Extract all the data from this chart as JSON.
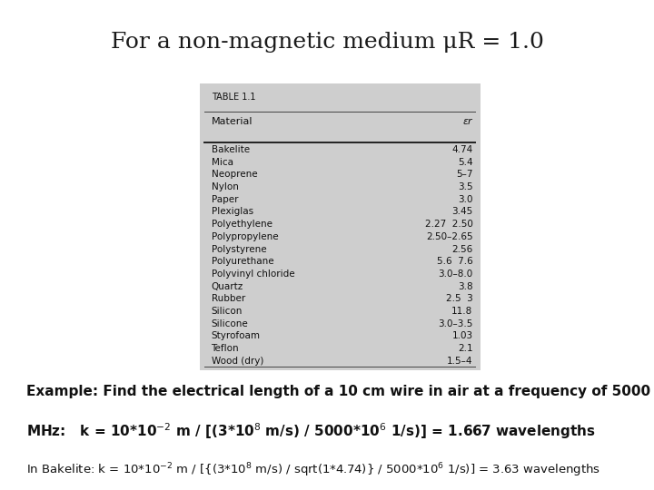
{
  "title": "For a non-magnetic medium μR = 1.0",
  "table_title": "TABLE 1.1",
  "col1_header": "Material",
  "col2_header": "εr",
  "table_data": [
    [
      "Bakelite",
      "4.74"
    ],
    [
      "Mica",
      "5.4"
    ],
    [
      "Neoprene",
      "5–7"
    ],
    [
      "Nylon",
      "3.5"
    ],
    [
      "Paper",
      "3.0"
    ],
    [
      "Plexiglas",
      "3.45"
    ],
    [
      "Polyethylene",
      "2.27  2.50"
    ],
    [
      "Polypropylene",
      "2.50–2.65"
    ],
    [
      "Polystyrene",
      "2.56"
    ],
    [
      "Polyurethane",
      "5.6  7.6"
    ],
    [
      "Polyvinyl chloride",
      "3.0–8.0"
    ],
    [
      "Quartz",
      "3.8"
    ],
    [
      "Rubber",
      "2.5  3"
    ],
    [
      "Silicon",
      "11.8"
    ],
    [
      "Silicone",
      "3.0–3.5"
    ],
    [
      "Styrofoam",
      "1.03"
    ],
    [
      "Teflon",
      "2.1"
    ],
    [
      "Wood (dry)",
      "1.5–4"
    ]
  ],
  "example_line1": "Example: Find the electrical length of a 10 cm wire in air at a frequency of 5000",
  "example_line2": "MHz:   k = 10*10$^{-2}$ m / [(3*10$^{8}$ m/s) / 5000*10$^{6}$ 1/s)] = 1.667 wavelengths",
  "bakelite_line": "In Bakelite: k = 10*10$^{-2}$ m / [{(3*10$^{8}$ m/s) / sqrt(1*4.74)} / 5000*10$^{6}$ 1/s)] = 3.63 wavelengths",
  "bg_color": "#ffffff",
  "table_bg": "#cecece",
  "title_fontsize": 18,
  "table_header_fontsize": 7,
  "table_col_fontsize": 8,
  "table_data_fontsize": 7.5,
  "example_fontsize": 11,
  "bakelite_fontsize": 9.5
}
